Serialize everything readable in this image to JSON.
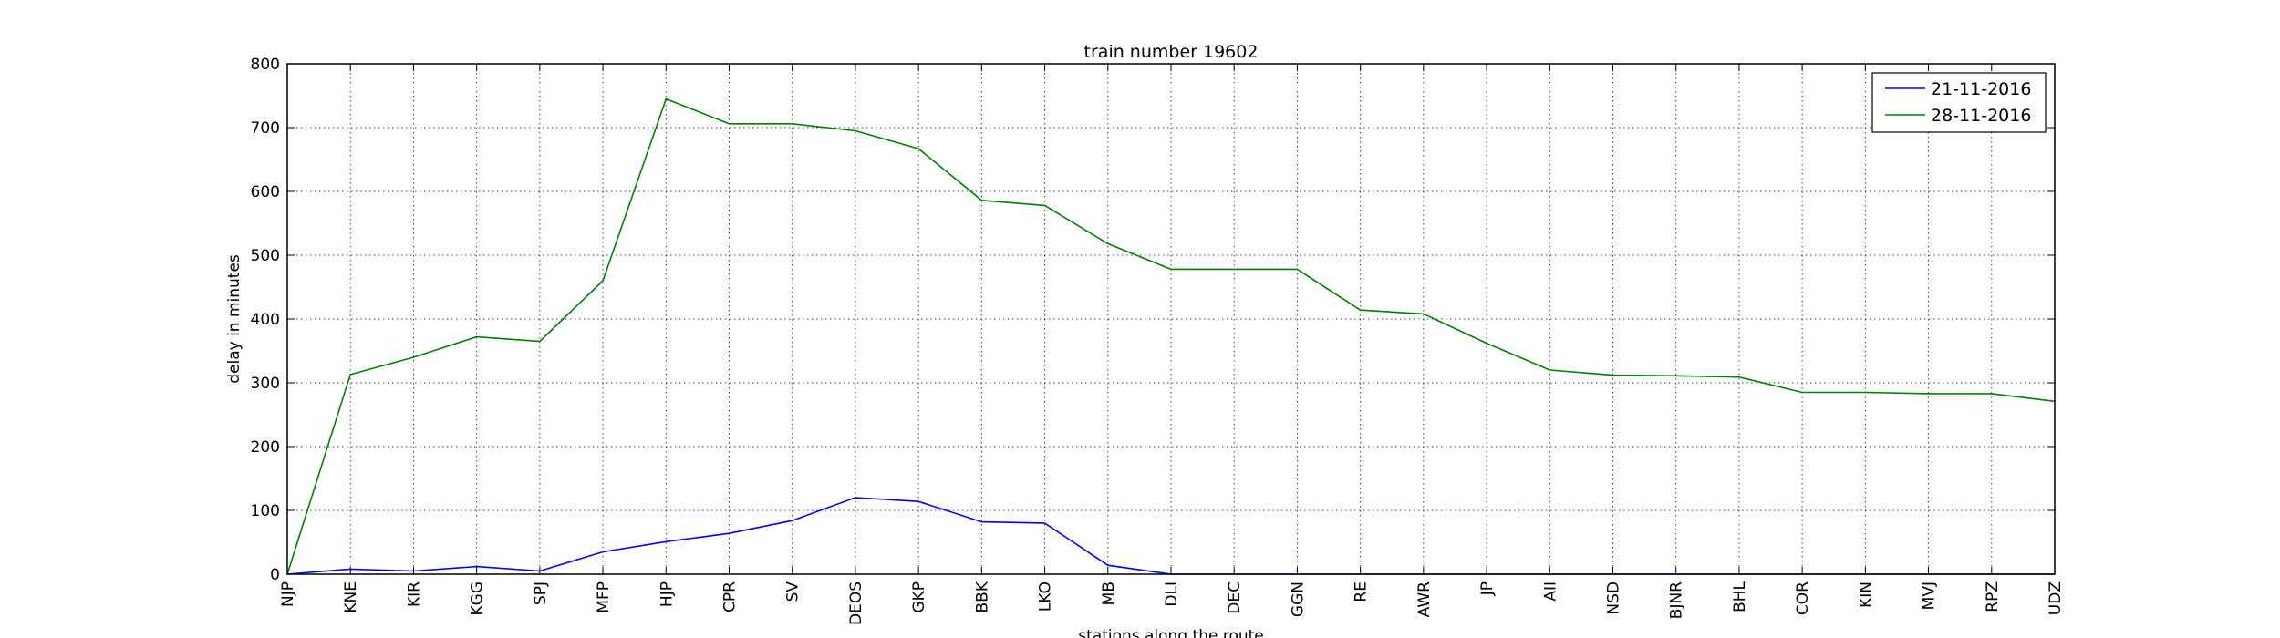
{
  "chart_data": {
    "type": "line",
    "title": "train number 19602",
    "xlabel": "stations along the route",
    "ylabel": "delay in minutes",
    "categories": [
      "NJP",
      "KNE",
      "KIR",
      "KGG",
      "SPJ",
      "MFP",
      "HJP",
      "CPR",
      "SV",
      "DEOS",
      "GKP",
      "BBK",
      "LKO",
      "MB",
      "DLI",
      "DEC",
      "GGN",
      "RE",
      "AWR",
      "JP",
      "AII",
      "NSD",
      "BJNR",
      "BHL",
      "COR",
      "KIN",
      "MVJ",
      "RPZ",
      "UDZ"
    ],
    "ylim": [
      0,
      800
    ],
    "yticks": [
      0,
      100,
      200,
      300,
      400,
      500,
      600,
      700,
      800
    ],
    "grid": true,
    "legend_position": "top-right",
    "series": [
      {
        "name": "21-11-2016",
        "color": "#0000ff",
        "values": [
          0,
          8,
          5,
          12,
          5,
          35,
          51,
          64,
          84,
          120,
          114,
          82,
          80,
          14,
          0,
          0,
          0,
          0,
          0,
          0,
          0,
          0,
          0,
          0,
          0,
          0,
          0,
          0,
          0
        ]
      },
      {
        "name": "28-11-2016",
        "color": "#008000",
        "values": [
          0,
          313,
          340,
          372,
          365,
          460,
          745,
          706,
          706,
          695,
          667,
          586,
          578,
          518,
          478,
          478,
          478,
          414,
          408,
          362,
          320,
          312,
          311,
          309,
          285,
          285,
          283,
          283,
          271
        ]
      }
    ]
  }
}
